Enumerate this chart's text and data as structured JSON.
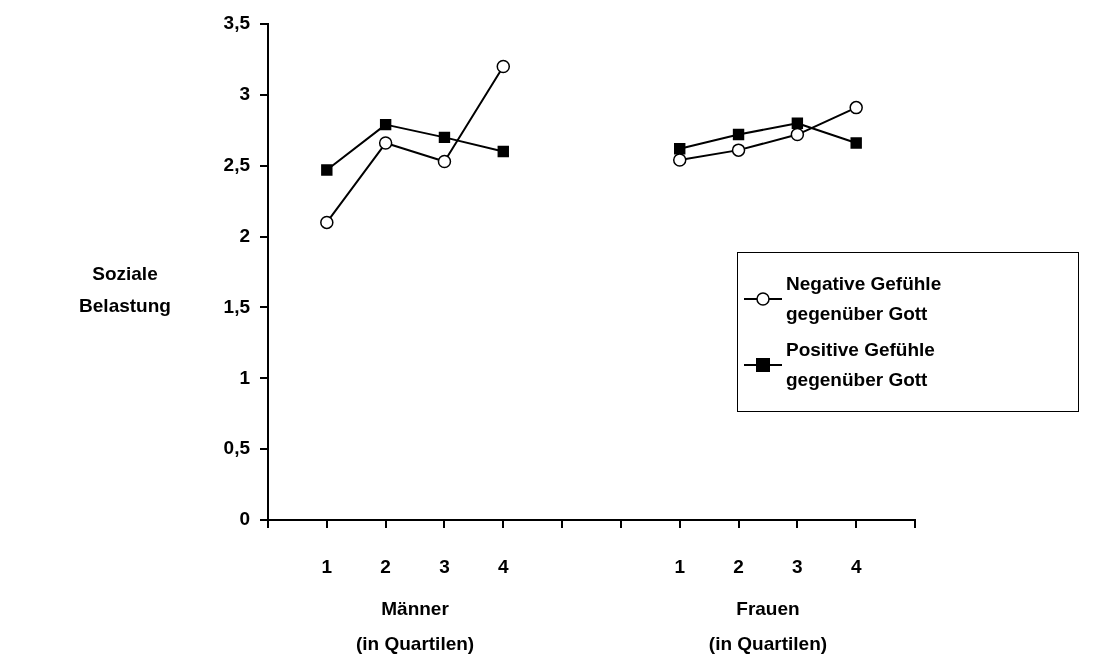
{
  "chart_data": {
    "type": "line",
    "ylabel": "Soziale\nBelastung",
    "categories": [
      null,
      "1",
      "2",
      "3",
      "4",
      null,
      null,
      "1",
      "2",
      "3",
      "4",
      null
    ],
    "series": [
      {
        "name": "Negative Gefühle gegenüber Gott",
        "color": "#000000",
        "marker": "circle",
        "values": [
          null,
          2.1,
          2.66,
          2.53,
          3.2,
          null,
          null,
          2.54,
          2.61,
          2.72,
          2.91,
          null
        ]
      },
      {
        "name": "Positive Gefühle gegenüber Gott",
        "color": "#000000",
        "marker": "square",
        "values": [
          null,
          2.47,
          2.79,
          2.7,
          2.6,
          null,
          null,
          2.62,
          2.72,
          2.8,
          2.66,
          null
        ]
      }
    ],
    "ylim": [
      0,
      3.5
    ],
    "yticks": [
      0,
      {
        "value": 0.5,
        "label": "0,5"
      },
      1,
      {
        "value": 1.5,
        "label": "1,5"
      },
      2,
      {
        "value": 2.5,
        "label": "2,5"
      },
      3,
      {
        "value": 3.5,
        "label": "3,5"
      }
    ],
    "annotations": [
      "Männer\n(in Quartilen)",
      "Frauen\n(in Quartilen)"
    ],
    "grid": false,
    "legend": "right",
    "line_style": "solid"
  }
}
